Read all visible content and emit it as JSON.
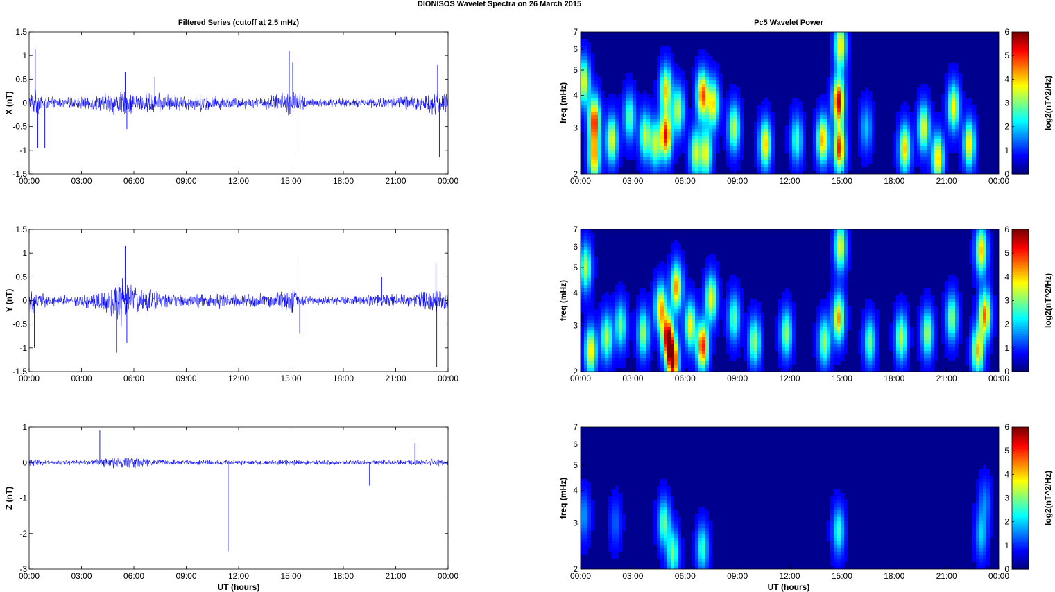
{
  "figure": {
    "suptitle": "DIONISOS Wavelet Spectra on 26 March     2015",
    "left_title": "Filtered Series (cutoff at 2.5 mHz)",
    "right_title": "Pc5 Wavelet Power",
    "xlabel": "UT (hours)"
  },
  "colors": {
    "series_line": "#0000ff",
    "spectrogram_background": "#00008f",
    "colormap": "jet"
  },
  "chart_data": [
    {
      "type": "line",
      "name": "X component filtered series",
      "ylabel": "X (nT)",
      "x_ticks": [
        "00:00",
        "03:00",
        "06:00",
        "09:00",
        "12:00",
        "15:00",
        "18:00",
        "21:00",
        "00:00"
      ],
      "x_range_hours": [
        0,
        24
      ],
      "ylim": [
        -1.5,
        1.5
      ],
      "y_ticks": [
        -1.5,
        -1,
        -0.5,
        0,
        0.5,
        1,
        1.5
      ],
      "y_tick_labels": [
        "-1.5",
        "-1",
        "-0.5",
        "0",
        "0.5",
        "1",
        "1.5"
      ],
      "noise_envelope": [
        {
          "t": 0.0,
          "amp": 0.25
        },
        {
          "t": 0.5,
          "amp": 0.3
        },
        {
          "t": 1.0,
          "amp": 0.15
        },
        {
          "t": 2.0,
          "amp": 0.12
        },
        {
          "t": 3.0,
          "amp": 0.15
        },
        {
          "t": 4.0,
          "amp": 0.2
        },
        {
          "t": 5.0,
          "amp": 0.3
        },
        {
          "t": 6.0,
          "amp": 0.25
        },
        {
          "t": 7.0,
          "amp": 0.25
        },
        {
          "t": 8.0,
          "amp": 0.2
        },
        {
          "t": 9.0,
          "amp": 0.18
        },
        {
          "t": 10.0,
          "amp": 0.2
        },
        {
          "t": 11.0,
          "amp": 0.15
        },
        {
          "t": 12.0,
          "amp": 0.15
        },
        {
          "t": 13.0,
          "amp": 0.12
        },
        {
          "t": 14.0,
          "amp": 0.2
        },
        {
          "t": 15.0,
          "amp": 0.35
        },
        {
          "t": 16.0,
          "amp": 0.12
        },
        {
          "t": 18.0,
          "amp": 0.1
        },
        {
          "t": 20.0,
          "amp": 0.15
        },
        {
          "t": 22.0,
          "amp": 0.2
        },
        {
          "t": 23.4,
          "amp": 0.3
        },
        {
          "t": 24.0,
          "amp": 0.2
        }
      ],
      "spikes": [
        {
          "t": 0.35,
          "v": 1.15
        },
        {
          "t": 0.5,
          "v": -0.95
        },
        {
          "t": 0.9,
          "v": -0.95
        },
        {
          "t": 5.5,
          "v": 0.65
        },
        {
          "t": 5.6,
          "v": -0.55
        },
        {
          "t": 7.2,
          "v": 0.55
        },
        {
          "t": 14.9,
          "v": 1.1
        },
        {
          "t": 15.4,
          "v": -1.0
        },
        {
          "t": 15.1,
          "v": 0.85
        },
        {
          "t": 23.4,
          "v": 0.8
        },
        {
          "t": 23.5,
          "v": -1.15
        }
      ]
    },
    {
      "type": "line",
      "name": "Y component filtered series",
      "ylabel": "Y (nT)",
      "x_ticks": [
        "00:00",
        "03:00",
        "06:00",
        "09:00",
        "12:00",
        "15:00",
        "18:00",
        "21:00",
        "00:00"
      ],
      "x_range_hours": [
        0,
        24
      ],
      "ylim": [
        -1.5,
        1.5
      ],
      "y_ticks": [
        -1.5,
        -1,
        -0.5,
        0,
        0.5,
        1,
        1.5
      ],
      "y_tick_labels": [
        "-1.5",
        "-1",
        "-0.5",
        "0",
        "0.5",
        "1",
        "1.5"
      ],
      "noise_envelope": [
        {
          "t": 0.0,
          "amp": 0.3
        },
        {
          "t": 0.5,
          "amp": 0.25
        },
        {
          "t": 1.0,
          "amp": 0.15
        },
        {
          "t": 2.0,
          "amp": 0.12
        },
        {
          "t": 3.0,
          "amp": 0.15
        },
        {
          "t": 4.5,
          "amp": 0.3
        },
        {
          "t": 5.3,
          "amp": 0.6
        },
        {
          "t": 6.0,
          "amp": 0.35
        },
        {
          "t": 7.0,
          "amp": 0.25
        },
        {
          "t": 8.0,
          "amp": 0.2
        },
        {
          "t": 9.0,
          "amp": 0.15
        },
        {
          "t": 11.0,
          "amp": 0.2
        },
        {
          "t": 12.0,
          "amp": 0.15
        },
        {
          "t": 14.0,
          "amp": 0.2
        },
        {
          "t": 15.0,
          "amp": 0.3
        },
        {
          "t": 16.0,
          "amp": 0.12
        },
        {
          "t": 18.0,
          "amp": 0.1
        },
        {
          "t": 20.0,
          "amp": 0.15
        },
        {
          "t": 22.0,
          "amp": 0.15
        },
        {
          "t": 23.3,
          "amp": 0.35
        },
        {
          "t": 24.0,
          "amp": 0.2
        }
      ],
      "spikes": [
        {
          "t": 0.3,
          "v": -1.0
        },
        {
          "t": 5.5,
          "v": 1.15
        },
        {
          "t": 5.0,
          "v": -1.1
        },
        {
          "t": 5.6,
          "v": -0.9
        },
        {
          "t": 15.4,
          "v": 0.9
        },
        {
          "t": 15.5,
          "v": -0.7
        },
        {
          "t": 20.2,
          "v": 0.5
        },
        {
          "t": 23.3,
          "v": 0.8
        },
        {
          "t": 23.35,
          "v": -1.4
        }
      ]
    },
    {
      "type": "line",
      "name": "Z component filtered series",
      "ylabel": "Z (nT)",
      "x_ticks": [
        "00:00",
        "03:00",
        "06:00",
        "09:00",
        "12:00",
        "15:00",
        "18:00",
        "21:00",
        "00:00"
      ],
      "x_range_hours": [
        0,
        24
      ],
      "ylim": [
        -3,
        1
      ],
      "y_ticks": [
        -3,
        -2,
        -1,
        0,
        1
      ],
      "y_tick_labels": [
        "-3",
        "-2",
        "-1",
        "0",
        "1"
      ],
      "noise_envelope": [
        {
          "t": 0.0,
          "amp": 0.12
        },
        {
          "t": 1.0,
          "amp": 0.08
        },
        {
          "t": 3.0,
          "amp": 0.08
        },
        {
          "t": 4.5,
          "amp": 0.15
        },
        {
          "t": 5.5,
          "amp": 0.2
        },
        {
          "t": 7.0,
          "amp": 0.1
        },
        {
          "t": 10.0,
          "amp": 0.08
        },
        {
          "t": 12.0,
          "amp": 0.08
        },
        {
          "t": 15.0,
          "amp": 0.1
        },
        {
          "t": 18.0,
          "amp": 0.07
        },
        {
          "t": 21.0,
          "amp": 0.08
        },
        {
          "t": 23.5,
          "amp": 0.12
        },
        {
          "t": 24.0,
          "amp": 0.08
        }
      ],
      "spikes": [
        {
          "t": 4.05,
          "v": 0.9
        },
        {
          "t": 11.4,
          "v": -2.5
        },
        {
          "t": 19.5,
          "v": -0.65
        },
        {
          "t": 22.1,
          "v": 0.55
        }
      ]
    },
    {
      "type": "heatmap",
      "name": "X component Pc5 wavelet power",
      "ylabel": "freq (mHz)",
      "y_scale": "log",
      "ylim_mhz": [
        2,
        7
      ],
      "y_ticks": [
        2,
        3,
        4,
        5,
        6,
        7
      ],
      "y_tick_labels": [
        "2",
        "3",
        "4",
        "5",
        "6",
        "7"
      ],
      "x_ticks": [
        "00:00",
        "03:00",
        "06:00",
        "09:00",
        "12:00",
        "15:00",
        "18:00",
        "21:00",
        "00:00"
      ],
      "x_range_hours": [
        0,
        24
      ],
      "colorbar": {
        "label": "log2(nT^2/Hz)",
        "range": [
          0,
          6
        ],
        "ticks": [
          "0",
          "1",
          "2",
          "3",
          "4",
          "5",
          "6"
        ]
      },
      "blobs": [
        {
          "t": 0.2,
          "f": 4.5,
          "p": 3.5
        },
        {
          "t": 0.8,
          "f": 3.2,
          "p": 5.0
        },
        {
          "t": 0.8,
          "f": 2.3,
          "p": 4.0
        },
        {
          "t": 1.8,
          "f": 2.7,
          "p": 3.5
        },
        {
          "t": 2.8,
          "f": 3.3,
          "p": 2.5
        },
        {
          "t": 3.7,
          "f": 2.8,
          "p": 3.2
        },
        {
          "t": 4.3,
          "f": 2.6,
          "p": 3.0
        },
        {
          "t": 4.9,
          "f": 2.8,
          "p": 5.2
        },
        {
          "t": 4.9,
          "f": 4.2,
          "p": 3.8
        },
        {
          "t": 5.6,
          "f": 3.5,
          "p": 3.2
        },
        {
          "t": 6.6,
          "f": 2.4,
          "p": 3.2
        },
        {
          "t": 7.0,
          "f": 4.0,
          "p": 4.8
        },
        {
          "t": 7.2,
          "f": 2.4,
          "p": 3.5
        },
        {
          "t": 7.6,
          "f": 3.7,
          "p": 3.8
        },
        {
          "t": 8.8,
          "f": 3.0,
          "p": 3.2
        },
        {
          "t": 10.6,
          "f": 2.6,
          "p": 3.8
        },
        {
          "t": 12.4,
          "f": 2.7,
          "p": 2.3
        },
        {
          "t": 13.9,
          "f": 2.7,
          "p": 4.2
        },
        {
          "t": 14.8,
          "f": 3.8,
          "p": 5.5
        },
        {
          "t": 14.85,
          "f": 2.5,
          "p": 5.0
        },
        {
          "t": 14.9,
          "f": 6.2,
          "p": 3.8
        },
        {
          "t": 16.4,
          "f": 3.0,
          "p": 1.5
        },
        {
          "t": 18.6,
          "f": 2.5,
          "p": 3.8
        },
        {
          "t": 19.7,
          "f": 3.0,
          "p": 3.5
        },
        {
          "t": 20.5,
          "f": 2.3,
          "p": 4.0
        },
        {
          "t": 21.4,
          "f": 3.6,
          "p": 3.5
        },
        {
          "t": 22.3,
          "f": 2.6,
          "p": 3.8
        }
      ]
    },
    {
      "type": "heatmap",
      "name": "Y component Pc5 wavelet power",
      "ylabel": "freq (mHz)",
      "y_scale": "log",
      "ylim_mhz": [
        2,
        7
      ],
      "y_ticks": [
        2,
        3,
        4,
        5,
        6,
        7
      ],
      "y_tick_labels": [
        "2",
        "3",
        "4",
        "5",
        "6",
        "7"
      ],
      "x_ticks": [
        "00:00",
        "03:00",
        "06:00",
        "09:00",
        "12:00",
        "15:00",
        "18:00",
        "21:00",
        "00:00"
      ],
      "x_range_hours": [
        0,
        24
      ],
      "colorbar": {
        "label": "log2(nT^2/Hz)",
        "range": [
          0,
          6
        ],
        "ticks": [
          "0",
          "1",
          "2",
          "3",
          "4",
          "5",
          "6"
        ]
      },
      "blobs": [
        {
          "t": 0.3,
          "f": 5.0,
          "p": 3.0
        },
        {
          "t": 0.6,
          "f": 2.4,
          "p": 3.8
        },
        {
          "t": 1.5,
          "f": 2.7,
          "p": 3.0
        },
        {
          "t": 2.3,
          "f": 3.0,
          "p": 2.5
        },
        {
          "t": 3.6,
          "f": 2.8,
          "p": 3.0
        },
        {
          "t": 4.6,
          "f": 3.5,
          "p": 4.0
        },
        {
          "t": 5.0,
          "f": 2.7,
          "p": 5.6
        },
        {
          "t": 5.3,
          "f": 2.2,
          "p": 5.8
        },
        {
          "t": 5.5,
          "f": 4.2,
          "p": 4.2
        },
        {
          "t": 6.3,
          "f": 3.0,
          "p": 3.5
        },
        {
          "t": 7.0,
          "f": 2.5,
          "p": 5.2
        },
        {
          "t": 7.5,
          "f": 3.8,
          "p": 3.5
        },
        {
          "t": 8.8,
          "f": 3.2,
          "p": 2.5
        },
        {
          "t": 10.0,
          "f": 2.6,
          "p": 3.0
        },
        {
          "t": 11.8,
          "f": 2.8,
          "p": 2.8
        },
        {
          "t": 14.0,
          "f": 2.6,
          "p": 3.0
        },
        {
          "t": 14.8,
          "f": 3.2,
          "p": 4.2
        },
        {
          "t": 14.9,
          "f": 6.0,
          "p": 3.5
        },
        {
          "t": 16.6,
          "f": 2.6,
          "p": 2.5
        },
        {
          "t": 18.4,
          "f": 2.7,
          "p": 3.2
        },
        {
          "t": 19.9,
          "f": 2.8,
          "p": 3.0
        },
        {
          "t": 21.3,
          "f": 3.2,
          "p": 2.8
        },
        {
          "t": 22.8,
          "f": 2.4,
          "p": 4.0
        },
        {
          "t": 23.2,
          "f": 3.3,
          "p": 4.5
        },
        {
          "t": 23.0,
          "f": 5.8,
          "p": 3.8
        }
      ]
    },
    {
      "type": "heatmap",
      "name": "Z component Pc5 wavelet power",
      "ylabel": "freq (mHz)",
      "y_scale": "log",
      "ylim_mhz": [
        2,
        7
      ],
      "y_ticks": [
        2,
        3,
        4,
        5,
        6,
        7
      ],
      "y_tick_labels": [
        "2",
        "3",
        "4",
        "5",
        "6",
        "7"
      ],
      "x_ticks": [
        "00:00",
        "03:00",
        "06:00",
        "09:00",
        "12:00",
        "15:00",
        "18:00",
        "21:00",
        "00:00"
      ],
      "x_range_hours": [
        0,
        24
      ],
      "colorbar": {
        "label": "log2(nT^2/Hz)",
        "range": [
          0,
          6
        ],
        "ticks": [
          "0",
          "1",
          "2",
          "3",
          "4",
          "5",
          "6"
        ]
      },
      "blobs": [
        {
          "t": 0.2,
          "f": 3.2,
          "p": 1.2
        },
        {
          "t": 2.0,
          "f": 3.0,
          "p": 0.8
        },
        {
          "t": 4.8,
          "f": 3.0,
          "p": 2.6
        },
        {
          "t": 5.3,
          "f": 2.3,
          "p": 2.6
        },
        {
          "t": 7.0,
          "f": 2.4,
          "p": 2.2
        },
        {
          "t": 14.8,
          "f": 2.8,
          "p": 2.2
        },
        {
          "t": 23.0,
          "f": 2.7,
          "p": 1.5
        },
        {
          "t": 23.2,
          "f": 3.6,
          "p": 1.0
        }
      ]
    }
  ]
}
